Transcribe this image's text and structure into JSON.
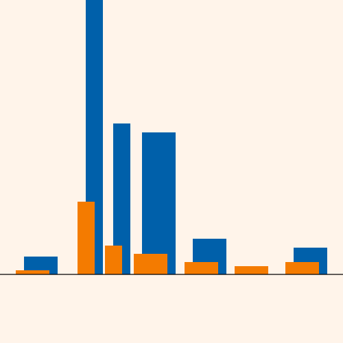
{
  "colors": {
    "background": "#fff4ea",
    "axis": "#000000",
    "series_blue": "#0060aa",
    "series_orange": "#f47b00"
  },
  "chart_data": {
    "type": "bar",
    "title": "",
    "xlabel": "",
    "ylabel": "",
    "ylim": [
      0,
      400
    ],
    "grid": false,
    "legend": "none",
    "x_range": [
      0,
      500
    ],
    "series": [
      {
        "color": "#0060aa",
        "bars": [
          {
            "x0": 35,
            "x1": 84,
            "value": 26
          },
          {
            "x0": 125,
            "x1": 150,
            "value": 400
          },
          {
            "x0": 165,
            "x1": 190,
            "value": 220
          },
          {
            "x0": 207,
            "x1": 256,
            "value": 207
          },
          {
            "x0": 281,
            "x1": 330,
            "value": 52
          },
          {
            "x0": 428,
            "x1": 477,
            "value": 39
          }
        ]
      },
      {
        "color": "#f47b00",
        "bars": [
          {
            "x0": 23,
            "x1": 72,
            "value": 6
          },
          {
            "x0": 113,
            "x1": 138,
            "value": 106
          },
          {
            "x0": 153,
            "x1": 178,
            "value": 42
          },
          {
            "x0": 195,
            "x1": 244,
            "value": 30
          },
          {
            "x0": 269,
            "x1": 318,
            "value": 18
          },
          {
            "x0": 342,
            "x1": 391,
            "value": 12
          },
          {
            "x0": 416,
            "x1": 465,
            "value": 18
          }
        ]
      }
    ]
  }
}
